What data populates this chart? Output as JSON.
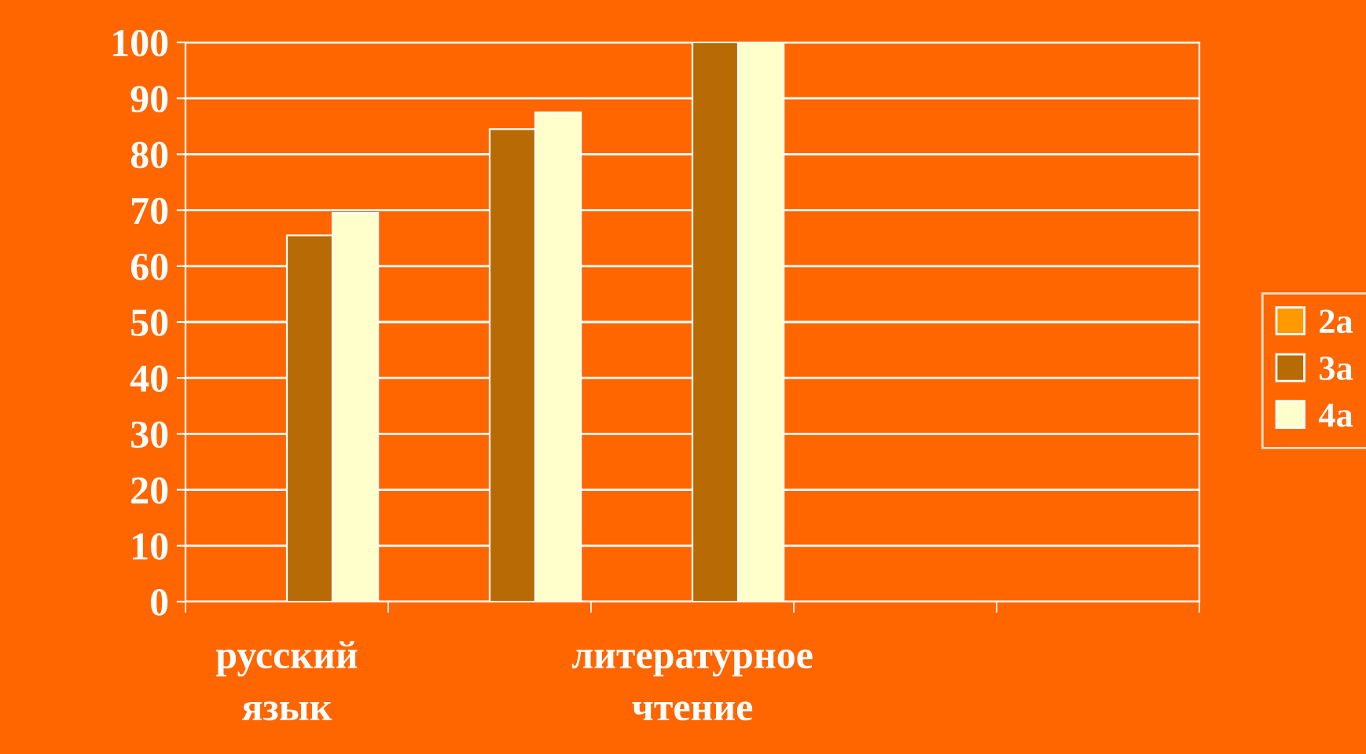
{
  "chart_data": {
    "type": "bar",
    "categories": [
      "русский язык",
      null,
      "литературное чтение",
      null,
      null
    ],
    "series": [
      {
        "name": "2a",
        "color": "#ff9900",
        "values": [
          null,
          null,
          null,
          null,
          null
        ]
      },
      {
        "name": "3a",
        "color": "#b86a04",
        "values": [
          65.5,
          84.5,
          100,
          null,
          null
        ]
      },
      {
        "name": "4a",
        "color": "#ffffcc",
        "values": [
          69.5,
          87.5,
          100,
          null,
          null
        ]
      }
    ],
    "ylim": [
      0,
      100
    ],
    "yticks": [
      0,
      10,
      20,
      30,
      40,
      50,
      60,
      70,
      80,
      90,
      100
    ],
    "grid": "y",
    "legend": "right"
  }
}
